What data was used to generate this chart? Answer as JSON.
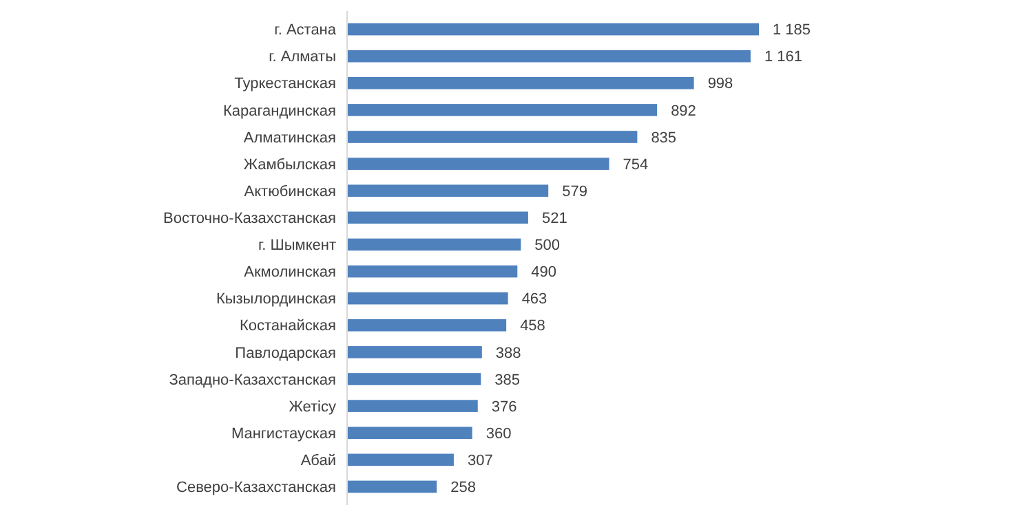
{
  "chart_data": {
    "type": "bar",
    "orientation": "horizontal",
    "categories": [
      "г. Астана",
      "г. Алматы",
      "Туркестанская",
      "Карагандинская",
      "Алматинская",
      "Жамбылская",
      "Актюбинская",
      "Восточно-Казахстанская",
      "г. Шымкент",
      "Акмолинская",
      "Кызылординская",
      "Костанайская",
      "Павлодарская",
      "Западно-Казахстанская",
      "Жетісу",
      "Мангистауская",
      "Абай",
      "Северо-Казахстанская"
    ],
    "values": [
      1185,
      1161,
      998,
      892,
      835,
      754,
      579,
      521,
      500,
      490,
      463,
      458,
      388,
      385,
      376,
      360,
      307,
      258
    ],
    "value_labels": [
      "1 185",
      "1 161",
      "998",
      "892",
      "835",
      "754",
      "579",
      "521",
      "500",
      "490",
      "463",
      "458",
      "388",
      "385",
      "376",
      "360",
      "307",
      "258"
    ],
    "color": "#4f81bd"
  }
}
